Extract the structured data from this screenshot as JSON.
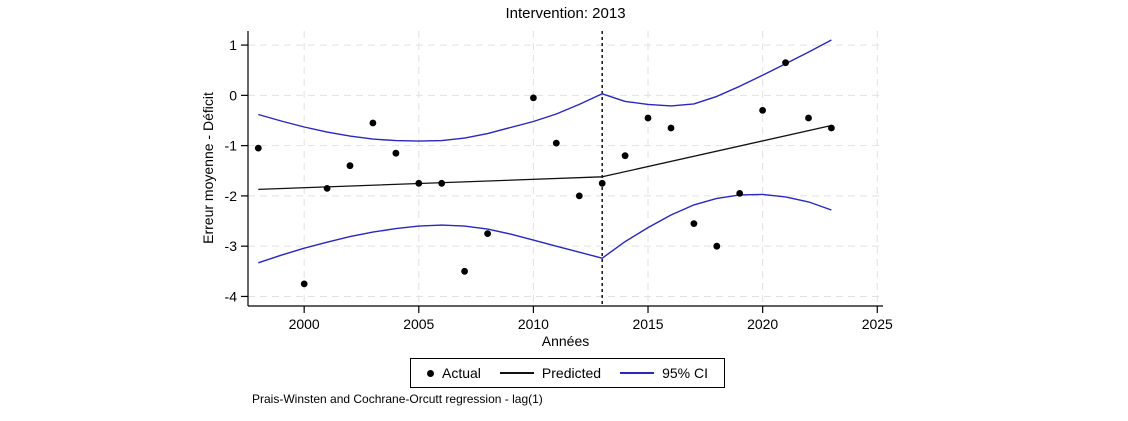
{
  "chart_data": {
    "type": "line",
    "title": "Intervention: 2013",
    "xlabel": "Années",
    "ylabel": "Erreur moyenne - Déficit",
    "footnote": "Prais-Winsten and Cochrane-Orcutt regression - lag(1)",
    "legend": [
      "Actual",
      "Predicted",
      "95% CI"
    ],
    "legend_position": "bottom-center",
    "x_ticks": [
      2000,
      2005,
      2010,
      2015,
      2020,
      2025
    ],
    "y_ticks": [
      1,
      0,
      -1,
      -2,
      -3,
      -4
    ],
    "xlim": [
      1997.55,
      2025.25
    ],
    "ylim": [
      -4.19,
      1.28
    ],
    "grid": true,
    "intervention_year": 2013,
    "colors": {
      "actual": "#000000",
      "predicted": "#111111",
      "ci": "#2727c4",
      "grid": "#e2e2e2",
      "axis": "#000000",
      "intervention": "#000000"
    },
    "series": [
      {
        "name": "Actual",
        "type": "scatter",
        "color": "#000000",
        "x": [
          1998,
          2000,
          2001,
          2002,
          2003,
          2004,
          2005,
          2006,
          2007,
          2008,
          2010,
          2011,
          2012,
          2013,
          2014,
          2015,
          2016,
          2017,
          2018,
          2019,
          2020,
          2021,
          2022,
          2023
        ],
        "y": [
          -1.05,
          -3.75,
          -1.85,
          -1.4,
          -0.55,
          -1.15,
          -1.75,
          -1.75,
          -3.5,
          -2.75,
          -0.05,
          -0.95,
          -2.0,
          -1.75,
          -1.2,
          -0.45,
          -0.65,
          -2.55,
          -3.0,
          -1.95,
          -0.3,
          0.65,
          -0.45,
          -0.65
        ]
      },
      {
        "name": "Predicted",
        "type": "line",
        "color": "#111111",
        "x": [
          1998,
          2013,
          2023
        ],
        "y": [
          -1.87,
          -1.62,
          -0.6
        ]
      },
      {
        "name": "95% CI upper",
        "type": "line",
        "color": "#2727c4",
        "x": [
          1998,
          1999,
          2000,
          2001,
          2002,
          2003,
          2004,
          2005,
          2006,
          2007,
          2008,
          2009,
          2010,
          2011,
          2012,
          2013,
          2014,
          2015,
          2016,
          2017,
          2018,
          2019,
          2020,
          2021,
          2022,
          2023
        ],
        "y": [
          -0.38,
          -0.51,
          -0.63,
          -0.73,
          -0.81,
          -0.87,
          -0.9,
          -0.91,
          -0.9,
          -0.85,
          -0.76,
          -0.64,
          -0.52,
          -0.37,
          -0.18,
          0.03,
          -0.12,
          -0.18,
          -0.21,
          -0.17,
          -0.02,
          0.18,
          0.4,
          0.63,
          0.86,
          1.1
        ]
      },
      {
        "name": "95% CI lower",
        "type": "line",
        "color": "#2727c4",
        "x": [
          1998,
          1999,
          2000,
          2001,
          2002,
          2003,
          2004,
          2005,
          2006,
          2007,
          2008,
          2009,
          2010,
          2011,
          2012,
          2013,
          2014,
          2015,
          2016,
          2017,
          2018,
          2019,
          2020,
          2021,
          2022,
          2023
        ],
        "y": [
          -3.33,
          -3.18,
          -3.04,
          -2.92,
          -2.81,
          -2.72,
          -2.65,
          -2.6,
          -2.58,
          -2.6,
          -2.66,
          -2.76,
          -2.88,
          -3.0,
          -3.12,
          -3.24,
          -2.91,
          -2.63,
          -2.38,
          -2.18,
          -2.05,
          -1.98,
          -1.97,
          -2.02,
          -2.12,
          -2.28
        ]
      }
    ]
  }
}
